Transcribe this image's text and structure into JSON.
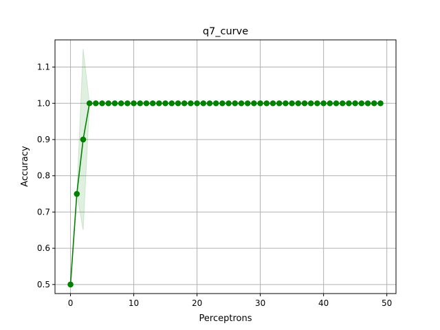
{
  "chart_data": {
    "type": "line",
    "title": "q7_curve",
    "xlabel": "Perceptrons",
    "ylabel": "Accuracy",
    "xlim": [
      -2.45,
      51.45
    ],
    "ylim": [
      0.475,
      1.175
    ],
    "xticks": [
      0,
      10,
      20,
      30,
      40,
      50
    ],
    "yticks": [
      0.5,
      0.6,
      0.7,
      0.8,
      0.9,
      1.0,
      1.1
    ],
    "xtick_labels": [
      "0",
      "10",
      "20",
      "30",
      "40",
      "50"
    ],
    "ytick_labels": [
      "0.5",
      "0.6",
      "0.7",
      "0.8",
      "0.9",
      "1.0",
      "1.1"
    ],
    "grid": true,
    "colors": {
      "line": "#008000",
      "band": "#008000"
    },
    "series": [
      {
        "x": [
          0,
          1,
          2,
          3,
          4,
          5,
          6,
          7,
          8,
          9,
          10,
          11,
          12,
          13,
          14,
          15,
          16,
          17,
          18,
          19,
          20,
          21,
          22,
          23,
          24,
          25,
          26,
          27,
          28,
          29,
          30,
          31,
          32,
          33,
          34,
          35,
          36,
          37,
          38,
          39,
          40,
          41,
          42,
          43,
          44,
          45,
          46,
          47,
          48,
          49
        ],
        "values": [
          0.5,
          0.75,
          0.9,
          1.0,
          1.0,
          1.0,
          1.0,
          1.0,
          1.0,
          1.0,
          1.0,
          1.0,
          1.0,
          1.0,
          1.0,
          1.0,
          1.0,
          1.0,
          1.0,
          1.0,
          1.0,
          1.0,
          1.0,
          1.0,
          1.0,
          1.0,
          1.0,
          1.0,
          1.0,
          1.0,
          1.0,
          1.0,
          1.0,
          1.0,
          1.0,
          1.0,
          1.0,
          1.0,
          1.0,
          1.0,
          1.0,
          1.0,
          1.0,
          1.0,
          1.0,
          1.0,
          1.0,
          1.0,
          1.0,
          1.0
        ],
        "band_lower": [
          0.5,
          0.75,
          0.65,
          1.0,
          1.0,
          1.0,
          1.0,
          1.0,
          1.0,
          1.0,
          1.0,
          1.0,
          1.0,
          1.0,
          1.0,
          1.0,
          1.0,
          1.0,
          1.0,
          1.0,
          1.0,
          1.0,
          1.0,
          1.0,
          1.0,
          1.0,
          1.0,
          1.0,
          1.0,
          1.0,
          1.0,
          1.0,
          1.0,
          1.0,
          1.0,
          1.0,
          1.0,
          1.0,
          1.0,
          1.0,
          1.0,
          1.0,
          1.0,
          1.0,
          1.0,
          1.0,
          1.0,
          1.0,
          1.0,
          1.0
        ],
        "band_upper": [
          0.5,
          0.75,
          1.15,
          1.0,
          1.0,
          1.0,
          1.0,
          1.0,
          1.0,
          1.0,
          1.0,
          1.0,
          1.0,
          1.0,
          1.0,
          1.0,
          1.0,
          1.0,
          1.0,
          1.0,
          1.0,
          1.0,
          1.0,
          1.0,
          1.0,
          1.0,
          1.0,
          1.0,
          1.0,
          1.0,
          1.0,
          1.0,
          1.0,
          1.0,
          1.0,
          1.0,
          1.0,
          1.0,
          1.0,
          1.0,
          1.0,
          1.0,
          1.0,
          1.0,
          1.0,
          1.0,
          1.0,
          1.0,
          1.0,
          1.0
        ]
      }
    ]
  }
}
